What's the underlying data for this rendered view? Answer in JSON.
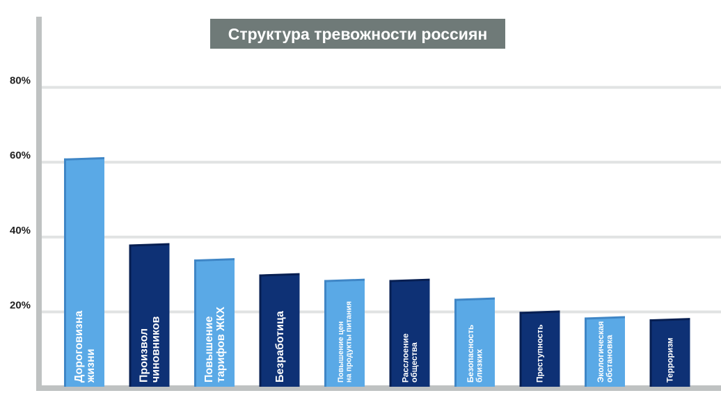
{
  "chart_data": {
    "type": "bar",
    "title": "Структура тревожности россиян",
    "xlabel": "",
    "ylabel": "",
    "ylim": [
      0,
      80
    ],
    "yticks": [
      20,
      40,
      60,
      80
    ],
    "ytick_labels": [
      "20%",
      "40%",
      "60%",
      "80%"
    ],
    "grid": true,
    "legend": "none",
    "colors": {
      "light": "#5aa9e6",
      "light_side": "#3f86c6",
      "dark": "#0e3175",
      "dark_side": "#071f52",
      "axis": "#bfc2c2",
      "gridline": "#e1e3e3",
      "title_bg": "#6f7a78"
    },
    "bars": [
      {
        "category": "Дороговизна жизни",
        "lines": [
          "Дороговизна",
          "жизни"
        ],
        "value": 61,
        "tone": "light"
      },
      {
        "category": "Произвол чиновников",
        "lines": [
          "Произвол",
          "чиновников"
        ],
        "value": 38,
        "tone": "dark"
      },
      {
        "category": "Повышение тарифов ЖКХ",
        "lines": [
          "Повышение",
          "тарифов ЖКХ"
        ],
        "value": 34,
        "tone": "light"
      },
      {
        "category": "Безработица",
        "lines": [
          "Безработица"
        ],
        "value": 30,
        "tone": "dark"
      },
      {
        "category": "Повышение цен на продукты питания",
        "lines": [
          "Повышение цен",
          "на продукты питания"
        ],
        "value": 28.5,
        "tone": "light"
      },
      {
        "category": "Расслоение общества",
        "lines": [
          "Расслоение",
          "общества"
        ],
        "value": 28.5,
        "tone": "dark"
      },
      {
        "category": "Безопасность близких",
        "lines": [
          "Безопасность",
          "близких"
        ],
        "value": 23.5,
        "tone": "light"
      },
      {
        "category": "Преступность",
        "lines": [
          "Преступность"
        ],
        "value": 20,
        "tone": "dark"
      },
      {
        "category": "Экологическая обстановка",
        "lines": [
          "Экологическая",
          "обстановка"
        ],
        "value": 18.5,
        "tone": "light"
      },
      {
        "category": "Терроризм",
        "lines": [
          "Терроризм"
        ],
        "value": 18,
        "tone": "dark"
      }
    ]
  }
}
